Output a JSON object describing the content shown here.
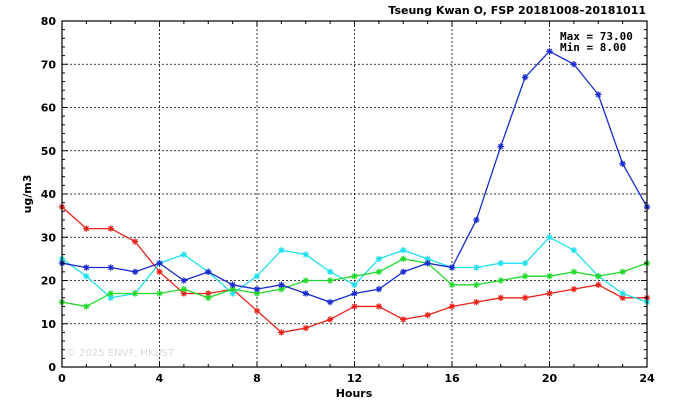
{
  "chart_data": {
    "type": "line",
    "title": "Tseung Kwan O, FSP 20181008–20181011",
    "xlabel": "Hours",
    "ylabel": "ug/m3",
    "xlim": [
      0,
      24
    ],
    "ylim": [
      0,
      80
    ],
    "x_ticks": [
      0,
      4,
      8,
      12,
      16,
      20,
      24
    ],
    "y_ticks": [
      0,
      10,
      20,
      30,
      40,
      50,
      60,
      70,
      80
    ],
    "grid": true,
    "x": [
      0,
      1,
      2,
      3,
      4,
      5,
      6,
      7,
      8,
      9,
      10,
      11,
      12,
      13,
      14,
      15,
      16,
      17,
      18,
      19,
      20,
      21,
      22,
      23,
      24
    ],
    "series": [
      {
        "color": "#e8231b",
        "values": [
          37,
          32,
          32,
          29,
          22,
          17,
          17,
          18,
          13,
          8,
          9,
          11,
          14,
          14,
          11,
          12,
          14,
          15,
          16,
          16,
          17,
          18,
          19,
          16,
          16
        ]
      },
      {
        "color": "#1ee0ec",
        "values": [
          25,
          21,
          16,
          17,
          24,
          26,
          22,
          17,
          21,
          27,
          26,
          22,
          19,
          25,
          27,
          25,
          23,
          23,
          24,
          24,
          30,
          27,
          21,
          17,
          15
        ]
      },
      {
        "color": "#22d82a",
        "values": [
          15,
          14,
          17,
          17,
          17,
          18,
          16,
          18,
          17,
          18,
          20,
          20,
          21,
          22,
          25,
          24,
          19,
          19,
          20,
          21,
          21,
          22,
          21,
          22,
          24
        ]
      },
      {
        "color": "#1a2bd0",
        "values": [
          24,
          23,
          23,
          22,
          24,
          20,
          22,
          19,
          18,
          19,
          17,
          15,
          17,
          18,
          22,
          24,
          23,
          34,
          51,
          67,
          73,
          70,
          63,
          47,
          37
        ]
      }
    ],
    "stats": {
      "max_line": "Max = 73.00",
      "min_line": "Min =  8.00"
    },
    "watermark": "© 2025  ENVF, HKUST"
  }
}
